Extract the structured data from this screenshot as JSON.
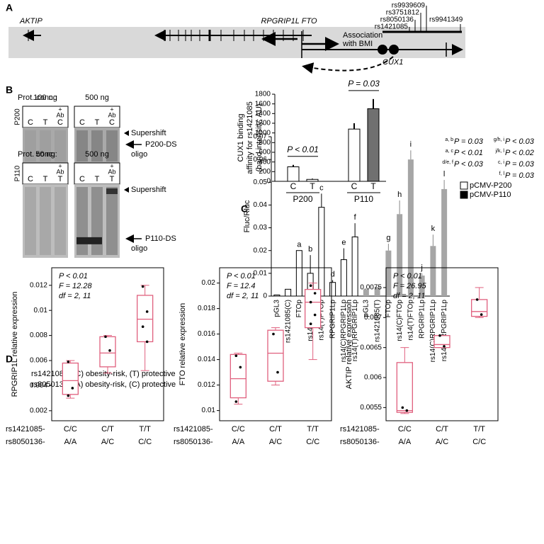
{
  "panel_a": {
    "label": "A",
    "genes": [
      "AKTIP",
      "RPGRIP1L FTO"
    ],
    "snps": [
      "rs9939609",
      "rs3751812",
      "rs8050136",
      "rs1421085",
      "rs9941349"
    ],
    "association": [
      "Association",
      "with BMI"
    ],
    "cux1": "CUX1"
  },
  "panel_b": {
    "label": "B",
    "gels": [
      {
        "protein": "P200",
        "conc_label": "Prot. conc.:",
        "concs": [
          "100 ng",
          "500 ng"
        ],
        "lanes": [
          "C",
          "T",
          "C"
        ],
        "ab": [
          "+",
          "Ab"
        ],
        "band_labels": [
          "Supershift",
          "P200-DS",
          "oligo"
        ]
      },
      {
        "protein": "P110",
        "conc_label": "Prot. conc.:",
        "concs": [
          "50 ng",
          "500 ng"
        ],
        "lanes": [
          "C",
          "T",
          "T"
        ],
        "ab": [
          "+",
          "Ab"
        ],
        "band_labels": [
          "Supershift",
          "P110-DS",
          "oligo"
        ]
      }
    ]
  },
  "panel_c": {
    "label": "C",
    "stats": [
      {
        "keys": "a, b",
        "text": "P = 0.03"
      },
      {
        "keys": "a, c",
        "text": "P < 0.01"
      },
      {
        "keys": "d/e, f",
        "text": "P < 0.03"
      },
      {
        "keys": "g/h, i",
        "text": "P < 0.03"
      },
      {
        "keys": "j/k, l",
        "text": "P < 0.02"
      },
      {
        "keys": "c, i",
        "text": "P = 0.03"
      },
      {
        "keys": "f, l",
        "text": "P = 0.03"
      }
    ]
  },
  "panel_d": {
    "label": "D",
    "notes": [
      "rs1421085- (C) obesity-risk, (T) protective",
      "rs8050136- (A) obesity-risk, (C) protective"
    ]
  },
  "chart_data": [
    {
      "type": "bar",
      "ylabel": [
        "CUX1 binding",
        "affinity for rs1421085",
        "(band intensity; AU)"
      ],
      "categories": [
        "C",
        "T",
        "C",
        "T"
      ],
      "groups": [
        "P200",
        "P110"
      ],
      "values": [
        300,
        40,
        1080,
        1500
      ],
      "errors": [
        40,
        15,
        120,
        200
      ],
      "colors": [
        "#ffffff",
        "#ffffff",
        "#ffffff",
        "#707070"
      ],
      "annotations": [
        "P < 0.01",
        "P = 0.03"
      ],
      "ylim": [
        0,
        1800
      ],
      "yticks": [
        0,
        200,
        400,
        600,
        800,
        1000,
        1200,
        1400,
        1600,
        1800
      ]
    },
    {
      "type": "bar",
      "ylabel": "Fluc/Rluc",
      "categories": [
        "pGL3",
        "rs1421085(C)",
        "FTOp",
        "rs14(C)FTOp",
        "rs14(T)FTOp",
        "RPGRIP1Lp",
        "rs14(C)RPGRIP1Lp",
        "rs14(T)RPGRIP1Lp",
        "pGL3",
        "rs1421085(T)",
        "FTOp",
        "rs14(C)FTOp",
        "rs14(T)FTOp",
        "RPGRIP1Lp",
        "rs14(C)RPGRIP1Lp",
        "rs14(T)RPGRIP1Lp"
      ],
      "series": [
        {
          "name": "pCMV-P200",
          "color": "#ffffff",
          "legend_color": "#ffffff",
          "values": [
            0.0005,
            0.003,
            0.02,
            0.01,
            0.039,
            0.006,
            0.016,
            0.026,
            null,
            null,
            null,
            null,
            null,
            null,
            null,
            null
          ],
          "errors": [
            null,
            null,
            null,
            0.008,
            0.006,
            0.001,
            0.005,
            0.006,
            null,
            null,
            null,
            null,
            null,
            null,
            null,
            null
          ],
          "labels": [
            null,
            null,
            "a",
            "b",
            "c",
            "d",
            "e",
            "f",
            null,
            null,
            null,
            null,
            null,
            null,
            null,
            null
          ]
        },
        {
          "name": "pCMV-P110",
          "color": "#a6a6a6",
          "legend_color": "#000000",
          "values": [
            null,
            null,
            null,
            null,
            null,
            null,
            null,
            null,
            0.003,
            0.004,
            0.02,
            0.036,
            0.06,
            0.009,
            0.022,
            0.047
          ],
          "errors": [
            null,
            null,
            null,
            null,
            null,
            null,
            null,
            null,
            null,
            null,
            0.003,
            0.006,
            0.004,
            0.001,
            0.005,
            0.004
          ],
          "labels": [
            null,
            null,
            null,
            null,
            null,
            null,
            null,
            null,
            null,
            null,
            "g",
            "h",
            "i",
            "j",
            "k",
            "l"
          ]
        }
      ],
      "ylim": [
        0,
        0.07
      ],
      "yticks": [
        0,
        0.01,
        0.02,
        0.03,
        0.04,
        0.05,
        0.06,
        0.07
      ]
    },
    {
      "type": "box",
      "ylabel": "RPGRIP1L relative expression",
      "color": "#e0607e",
      "row_labels": [
        "rs1421085-",
        "rs8050136-"
      ],
      "categories": [
        "C/C",
        "C/T",
        "T/T"
      ],
      "categories2": [
        "A/A",
        "A/C",
        "C/C"
      ],
      "stats": [
        "P < 0.01",
        "F = 12.28",
        "df = 2, 11"
      ],
      "boxes": [
        {
          "min": 0.003,
          "q1": 0.0033,
          "median": 0.0044,
          "q3": 0.0058,
          "max": 0.006,
          "points": [
            0.0059,
            0.0038,
            0.0032
          ]
        },
        {
          "min": 0.005,
          "q1": 0.0055,
          "median": 0.0066,
          "q3": 0.0079,
          "max": 0.008,
          "points": [
            0.0079,
            0.0068
          ]
        },
        {
          "min": 0.0052,
          "q1": 0.0075,
          "median": 0.0093,
          "q3": 0.0112,
          "max": 0.012,
          "points": [
            0.0119,
            0.0099,
            0.0087,
            0.0075
          ]
        }
      ],
      "ylim": [
        0.0012,
        0.0134
      ],
      "yticks": [
        0.002,
        0.004,
        0.006,
        0.008,
        0.01,
        0.012
      ]
    },
    {
      "type": "box",
      "ylabel": "FTO relative expression",
      "color": "#e0607e",
      "row_labels": [
        "rs1421085-",
        "rs8050136-"
      ],
      "categories": [
        "C/C",
        "C/T",
        "T/T"
      ],
      "categories2": [
        "A/A",
        "A/C",
        "C/C"
      ],
      "stats": [
        "P < 0.01",
        "F = 12.4",
        "df = 2, 11"
      ],
      "boxes": [
        {
          "min": 0.0105,
          "q1": 0.011,
          "median": 0.0125,
          "q3": 0.0144,
          "max": 0.0145,
          "points": [
            0.0143,
            0.0134,
            0.0107
          ]
        },
        {
          "min": 0.012,
          "q1": 0.0123,
          "median": 0.0145,
          "q3": 0.0163,
          "max": 0.0165,
          "points": [
            0.016,
            0.013
          ]
        },
        {
          "min": 0.014,
          "q1": 0.0165,
          "median": 0.0185,
          "q3": 0.0195,
          "max": 0.02,
          "points": [
            0.0198,
            0.0192,
            0.0185,
            0.0175,
            0.0168
          ]
        }
      ],
      "ylim": [
        0.0092,
        0.0212
      ],
      "yticks": [
        0.01,
        0.012,
        0.014,
        0.016,
        0.018,
        0.02
      ]
    },
    {
      "type": "box",
      "ylabel": "AKTIP relative expression",
      "color": "#e0607e",
      "row_labels": [
        "rs1421085-",
        "rs8050136-"
      ],
      "categories": [
        "C/C",
        "C/T",
        "T/T"
      ],
      "categories2": [
        "A/A",
        "A/C",
        "C/C"
      ],
      "stats": [
        "P < 0.01",
        "F = 26.95",
        "df = 2, 11"
      ],
      "boxes": [
        {
          "min": 0.0054,
          "q1": 0.00542,
          "median": 0.00545,
          "q3": 0.00625,
          "max": 0.0065,
          "points": [
            0.0055,
            0.00545
          ]
        },
        {
          "min": 0.0065,
          "q1": 0.0065,
          "median": 0.00655,
          "q3": 0.0067,
          "max": 0.0067,
          "points": [
            0.0067,
            0.00652
          ]
        },
        {
          "min": 0.007,
          "q1": 0.00702,
          "median": 0.0071,
          "q3": 0.0073,
          "max": 0.0075,
          "points": [
            0.0073,
            0.00705
          ]
        }
      ],
      "ylim": [
        0.00528,
        0.00783
      ],
      "yticks": [
        0.0055,
        0.006,
        0.0065,
        0.007,
        0.0075
      ]
    }
  ]
}
